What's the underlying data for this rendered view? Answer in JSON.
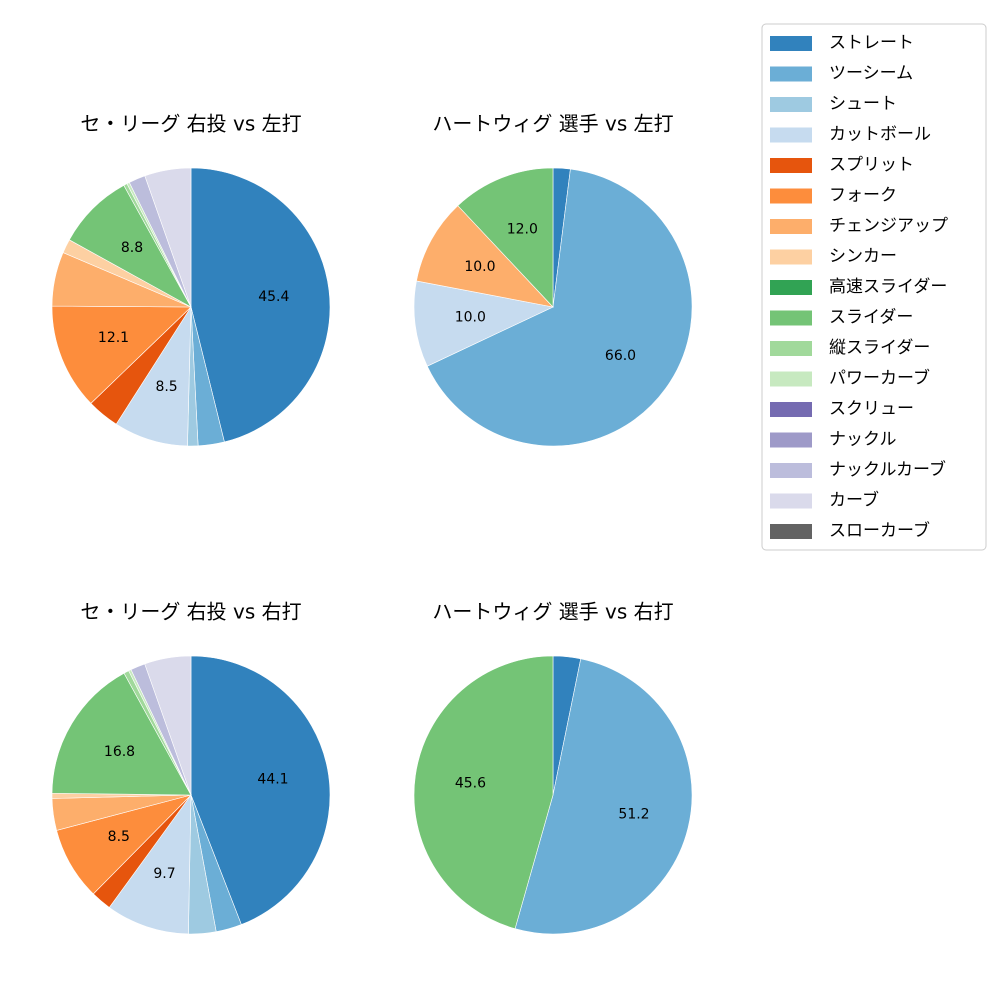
{
  "colors": {
    "ストレート": "#3182bd",
    "ツーシーム": "#6baed6",
    "シュート": "#9ecae1",
    "カットボール": "#c6dbef",
    "スプリット": "#e6550d",
    "フォーク": "#fd8d3c",
    "チェンジアップ": "#fdae6b",
    "シンカー": "#fdd0a2",
    "高速スライダー": "#31a354",
    "スライダー": "#74c476",
    "縦スライダー": "#a1d99b",
    "パワーカーブ": "#c7e9c0",
    "スクリュー": "#756bb1",
    "ナックル": "#9e9ac8",
    "ナックルカーブ": "#bcbddc",
    "カーブ": "#dadaeb",
    "スローカーブ": "#636363"
  },
  "legend": {
    "items": [
      "ストレート",
      "ツーシーム",
      "シュート",
      "カットボール",
      "スプリット",
      "フォーク",
      "チェンジアップ",
      "シンカー",
      "高速スライダー",
      "スライダー",
      "縦スライダー",
      "パワーカーブ",
      "スクリュー",
      "ナックル",
      "ナックルカーブ",
      "カーブ",
      "スローカーブ"
    ]
  },
  "chart_data": [
    {
      "type": "pie",
      "title": "セ・リーグ 右投 vs 左打",
      "start_angle_deg": 90,
      "direction": "clockwise",
      "slices": [
        {
          "label": "ストレート",
          "value": 45.4,
          "show_label": true
        },
        {
          "label": "ツーシーム",
          "value": 3.0
        },
        {
          "label": "シュート",
          "value": 1.2
        },
        {
          "label": "カットボール",
          "value": 8.5,
          "show_label": true
        },
        {
          "label": "スプリット",
          "value": 3.7
        },
        {
          "label": "フォーク",
          "value": 12.1,
          "show_label": true
        },
        {
          "label": "チェンジアップ",
          "value": 6.2
        },
        {
          "label": "シンカー",
          "value": 1.6
        },
        {
          "label": "スライダー",
          "value": 8.8,
          "show_label": true
        },
        {
          "label": "縦スライダー",
          "value": 0.4
        },
        {
          "label": "パワーカーブ",
          "value": 0.3
        },
        {
          "label": "ナックルカーブ",
          "value": 1.9
        },
        {
          "label": "カーブ",
          "value": 5.3
        }
      ]
    },
    {
      "type": "pie",
      "title": "ハートウィグ 選手 vs 左打",
      "start_angle_deg": 90,
      "direction": "clockwise",
      "slices": [
        {
          "label": "ストレート",
          "value": 2.0
        },
        {
          "label": "ツーシーム",
          "value": 66.0,
          "show_label": true
        },
        {
          "label": "カットボール",
          "value": 10.0,
          "show_label": true
        },
        {
          "label": "チェンジアップ",
          "value": 10.0,
          "show_label": true
        },
        {
          "label": "スライダー",
          "value": 12.0,
          "show_label": true
        }
      ]
    },
    {
      "type": "pie",
      "title": "セ・リーグ 右投 vs 右打",
      "start_angle_deg": 90,
      "direction": "clockwise",
      "slices": [
        {
          "label": "ストレート",
          "value": 44.1,
          "show_label": true
        },
        {
          "label": "ツーシーム",
          "value": 3.0
        },
        {
          "label": "シュート",
          "value": 3.2
        },
        {
          "label": "カットボール",
          "value": 9.7,
          "show_label": true
        },
        {
          "label": "スプリット",
          "value": 2.4
        },
        {
          "label": "フォーク",
          "value": 8.5,
          "show_label": true
        },
        {
          "label": "チェンジアップ",
          "value": 3.7
        },
        {
          "label": "シンカー",
          "value": 0.6
        },
        {
          "label": "スライダー",
          "value": 16.8,
          "show_label": true
        },
        {
          "label": "縦スライダー",
          "value": 0.6
        },
        {
          "label": "パワーカーブ",
          "value": 0.3
        },
        {
          "label": "ナックルカーブ",
          "value": 1.7
        },
        {
          "label": "カーブ",
          "value": 5.4
        }
      ]
    },
    {
      "type": "pie",
      "title": "ハートウィグ 選手 vs 右打",
      "start_angle_deg": 90,
      "direction": "clockwise",
      "slices": [
        {
          "label": "ストレート",
          "value": 3.2
        },
        {
          "label": "ツーシーム",
          "value": 51.2,
          "show_label": true
        },
        {
          "label": "スライダー",
          "value": 45.6,
          "show_label": true
        }
      ]
    }
  ]
}
